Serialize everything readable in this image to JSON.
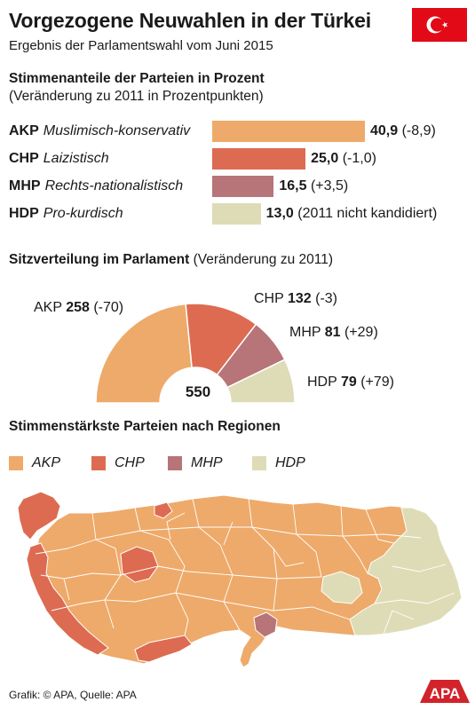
{
  "header": {
    "title": "Vorgezogene Neuwahlen in der Türkei",
    "subtitle": "Ergebnis der Parlamentswahl vom Juni 2015"
  },
  "colors": {
    "AKP": "#eeaa6a",
    "CHP": "#dd6b51",
    "MHP": "#b77479",
    "HDP": "#dedcb6",
    "map_border": "#ffffff"
  },
  "votes": {
    "heading": "Stimmenanteile der Parteien in Prozent",
    "note": "(Veränderung zu 2011 in Prozentpunkten)",
    "rows": [
      {
        "party": "AKP",
        "desc": "Muslimisch-konservativ",
        "value_text": "40,9",
        "change": "(-8,9)"
      },
      {
        "party": "CHP",
        "desc": "Laizistisch",
        "value_text": "25,0",
        "change": "(-1,0)"
      },
      {
        "party": "MHP",
        "desc": "Rechts-nationalistisch",
        "value_text": "16,5",
        "change": "(+3,5)"
      },
      {
        "party": "HDP",
        "desc": "Pro-kurdisch",
        "value_text": "13,0",
        "change": "(2011 nicht kandidiert)"
      }
    ]
  },
  "seats": {
    "heading": "Sitzverteilung im Parlament",
    "note": "(Veränderung zu 2011)",
    "total": "550",
    "parties": [
      {
        "party": "AKP",
        "seats": "258",
        "change": "(-70)"
      },
      {
        "party": "CHP",
        "seats": "132",
        "change": "(-3)"
      },
      {
        "party": "MHP",
        "seats": "81",
        "change": "(+29)"
      },
      {
        "party": "HDP",
        "seats": "79",
        "change": "(+79)"
      }
    ]
  },
  "regions": {
    "heading": "Stimmenstärkste Parteien nach Regionen",
    "legend": [
      "AKP",
      "CHP",
      "MHP",
      "HDP"
    ]
  },
  "source": "Grafik: © APA, Quelle: APA",
  "logo_text": "APA",
  "chart_data": [
    {
      "type": "bar",
      "title": "Stimmenanteile der Parteien in Prozent",
      "subtitle": "(Veränderung zu 2011 in Prozentpunkten)",
      "categories": [
        "AKP",
        "CHP",
        "MHP",
        "HDP"
      ],
      "values": [
        40.9,
        25.0,
        16.5,
        13.0
      ],
      "changes": [
        -8.9,
        -1.0,
        3.5,
        null
      ],
      "xlim": [
        0,
        40.9
      ]
    },
    {
      "type": "pie",
      "title": "Sitzverteilung im Parlament",
      "subtitle": "(Veränderung zu 2011)",
      "categories": [
        "AKP",
        "CHP",
        "MHP",
        "HDP"
      ],
      "values": [
        258,
        132,
        81,
        79
      ],
      "changes": [
        -70,
        -3,
        29,
        79
      ],
      "total": 550
    }
  ]
}
